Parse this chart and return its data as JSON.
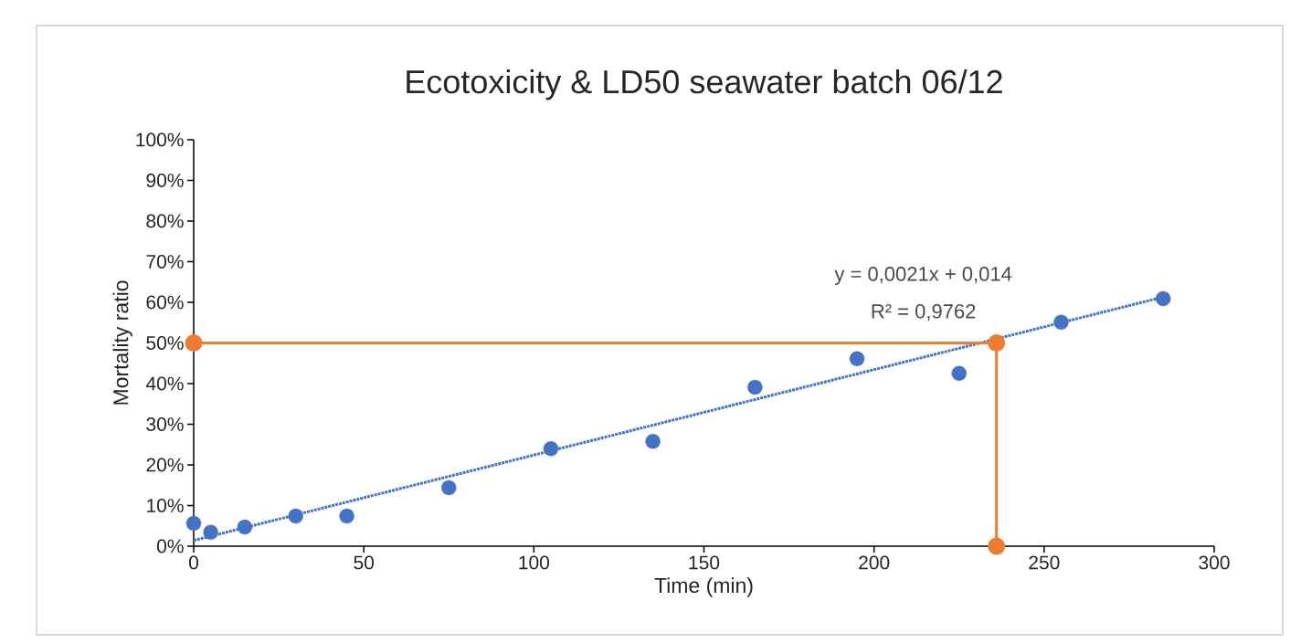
{
  "chart_data": {
    "type": "scatter",
    "title": "Ecotoxicity & LD50 seawater batch 06/12",
    "xlabel": "Time (min)",
    "ylabel": "Mortality ratio",
    "x": [
      0,
      5,
      15,
      30,
      45,
      75,
      105,
      135,
      165,
      195,
      225,
      255,
      285
    ],
    "series": [
      {
        "type": "scatter",
        "color": "#4472c4",
        "marker": "circle",
        "values": [
          5.6,
          3.4,
          4.7,
          7.4,
          7.4,
          14.4,
          24.0,
          25.8,
          39.1,
          46.1,
          42.5,
          55.1,
          60.9
        ]
      },
      {
        "type": "line",
        "color": "#4472c4",
        "marker": "none",
        "line_style": "dotted",
        "x": [
          0,
          285
        ],
        "values": [
          1.4,
          61.3
        ]
      },
      {
        "type": "line",
        "color": "#ed7d31",
        "marker": "circle",
        "line_style": "solid",
        "x": [
          0,
          236,
          236
        ],
        "values": [
          50,
          50,
          0
        ]
      }
    ],
    "annotations": [
      "y = 0,0021x + 0,014",
      "R² = 0,9762"
    ],
    "xlim": [
      0,
      300
    ],
    "xticks": [
      0,
      50,
      100,
      150,
      200,
      250,
      300
    ],
    "ylim": [
      0,
      100
    ],
    "yticks": [
      {
        "value": 0,
        "label": "0%"
      },
      {
        "value": 10,
        "label": "10%"
      },
      {
        "value": 20,
        "label": "20%"
      },
      {
        "value": 30,
        "label": "30%"
      },
      {
        "value": 40,
        "label": "40%"
      },
      {
        "value": 50,
        "label": "50%"
      },
      {
        "value": 60,
        "label": "60%"
      },
      {
        "value": 70,
        "label": "70%"
      },
      {
        "value": 80,
        "label": "80%"
      },
      {
        "value": 90,
        "label": "90%"
      },
      {
        "value": 100,
        "label": "100%"
      }
    ],
    "grid": false
  }
}
